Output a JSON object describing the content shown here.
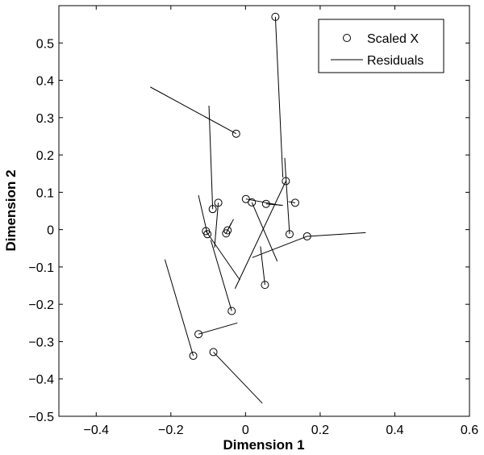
{
  "chart_data": {
    "type": "scatter",
    "xlabel": "Dimension 1",
    "ylabel": "Dimension 2",
    "xlim": [
      -0.5,
      0.6
    ],
    "ylim": [
      -0.5,
      0.6
    ],
    "xticks": [
      -0.4,
      -0.2,
      0,
      0.2,
      0.4,
      0.6
    ],
    "xtick_labels": [
      "−0.4",
      "−0.2",
      "0",
      "0.2",
      "0.4",
      "0.6"
    ],
    "yticks": [
      -0.5,
      -0.4,
      -0.3,
      -0.2,
      -0.1,
      0,
      0.1,
      0.2,
      0.3,
      0.4,
      0.5
    ],
    "ytick_labels": [
      "−0.5",
      "−0.4",
      "−0.3",
      "−0.2",
      "−0.1",
      "0",
      "0.1",
      "0.2",
      "0.3",
      "0.4",
      "0.5"
    ],
    "grid": false,
    "legend_position": "top-right",
    "series": [
      {
        "name": "Scaled X",
        "marker": "circle",
        "points": [
          [
            0.08,
            0.57
          ],
          [
            -0.025,
            0.257
          ],
          [
            -0.073,
            0.072
          ],
          [
            -0.088,
            0.055
          ],
          [
            0.001,
            0.082
          ],
          [
            0.017,
            0.073
          ],
          [
            0.055,
            0.069
          ],
          [
            0.108,
            0.13
          ],
          [
            0.133,
            0.072
          ],
          [
            0.118,
            -0.012
          ],
          [
            0.165,
            -0.018
          ],
          [
            -0.106,
            -0.004
          ],
          [
            -0.102,
            -0.012
          ],
          [
            -0.048,
            -0.002
          ],
          [
            -0.052,
            -0.01
          ],
          [
            0.052,
            -0.148
          ],
          [
            -0.037,
            -0.218
          ],
          [
            -0.126,
            -0.28
          ],
          [
            -0.14,
            -0.338
          ],
          [
            -0.086,
            -0.328
          ]
        ]
      },
      {
        "name": "Residuals",
        "marker": "line",
        "segments": [
          [
            [
              0.08,
              0.57
            ],
            [
              0.1,
              0.14
            ]
          ],
          [
            [
              -0.025,
              0.257
            ],
            [
              -0.255,
              0.382
            ]
          ],
          [
            [
              -0.073,
              0.072
            ],
            [
              -0.083,
              -0.048
            ]
          ],
          [
            [
              -0.088,
              0.055
            ],
            [
              -0.098,
              0.332
            ]
          ],
          [
            [
              0.001,
              0.082
            ],
            [
              0.095,
              0.065
            ]
          ],
          [
            [
              0.017,
              0.073
            ],
            [
              0.085,
              -0.085
            ]
          ],
          [
            [
              0.055,
              0.069
            ],
            [
              0.1,
              0.065
            ]
          ],
          [
            [
              0.108,
              0.13
            ],
            [
              -0.028,
              -0.158
            ]
          ],
          [
            [
              0.133,
              0.072
            ],
            [
              0.115,
              0.075
            ]
          ],
          [
            [
              0.118,
              -0.012
            ],
            [
              0.105,
              0.192
            ]
          ],
          [
            [
              0.165,
              -0.018
            ],
            [
              0.322,
              -0.008
            ]
          ],
          [
            [
              0.165,
              -0.018
            ],
            [
              0.018,
              -0.075
            ]
          ],
          [
            [
              -0.106,
              -0.004
            ],
            [
              -0.015,
              -0.135
            ]
          ],
          [
            [
              -0.102,
              -0.012
            ],
            [
              -0.126,
              0.092
            ]
          ],
          [
            [
              -0.048,
              -0.002
            ],
            [
              -0.032,
              0.028
            ]
          ],
          [
            [
              -0.052,
              -0.01
            ],
            [
              -0.038,
              0.018
            ]
          ],
          [
            [
              0.052,
              -0.148
            ],
            [
              0.04,
              -0.045
            ]
          ],
          [
            [
              -0.037,
              -0.218
            ],
            [
              -0.093,
              -0.028
            ]
          ],
          [
            [
              -0.126,
              -0.28
            ],
            [
              -0.022,
              -0.25
            ]
          ],
          [
            [
              -0.14,
              -0.338
            ],
            [
              -0.216,
              -0.08
            ]
          ],
          [
            [
              -0.086,
              -0.328
            ],
            [
              0.045,
              -0.465
            ]
          ]
        ]
      }
    ]
  }
}
